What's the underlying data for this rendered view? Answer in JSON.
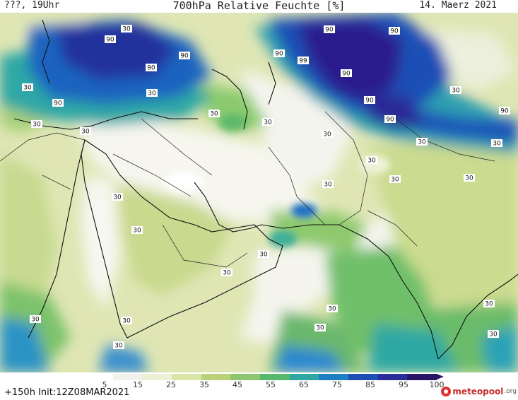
{
  "header": {
    "left": "???, 19Uhr",
    "title": "700hPa Relative Feuchte [%]",
    "right": "14. Maerz 2021"
  },
  "footer": {
    "init": "+150h Init:12Z08MAR2021",
    "logo_name": "meteopool",
    "logo_tld": ".org"
  },
  "colorbar": {
    "labels": [
      "5",
      "15",
      "25",
      "35",
      "45",
      "55",
      "65",
      "75",
      "85",
      "95",
      "100"
    ],
    "colors": [
      "#ffffff",
      "#f2f2ec",
      "#eef0d4",
      "#d9e4a6",
      "#b9d27a",
      "#8cc66e",
      "#55b86a",
      "#2ea7a0",
      "#1c7fc4",
      "#1f4fb4",
      "#2a2c9a",
      "#2a1466"
    ]
  },
  "map": {
    "contour_labels": [
      "90",
      "90",
      "90",
      "90",
      "90",
      "90",
      "90",
      "99",
      "90",
      "90",
      "90",
      "90",
      "30",
      "30",
      "30",
      "30",
      "30",
      "30",
      "30",
      "30",
      "30",
      "30",
      "30",
      "30",
      "30",
      "30",
      "30",
      "30",
      "30",
      "30",
      "30",
      "30",
      "30",
      "30",
      "30",
      "30",
      "30",
      "30"
    ]
  }
}
